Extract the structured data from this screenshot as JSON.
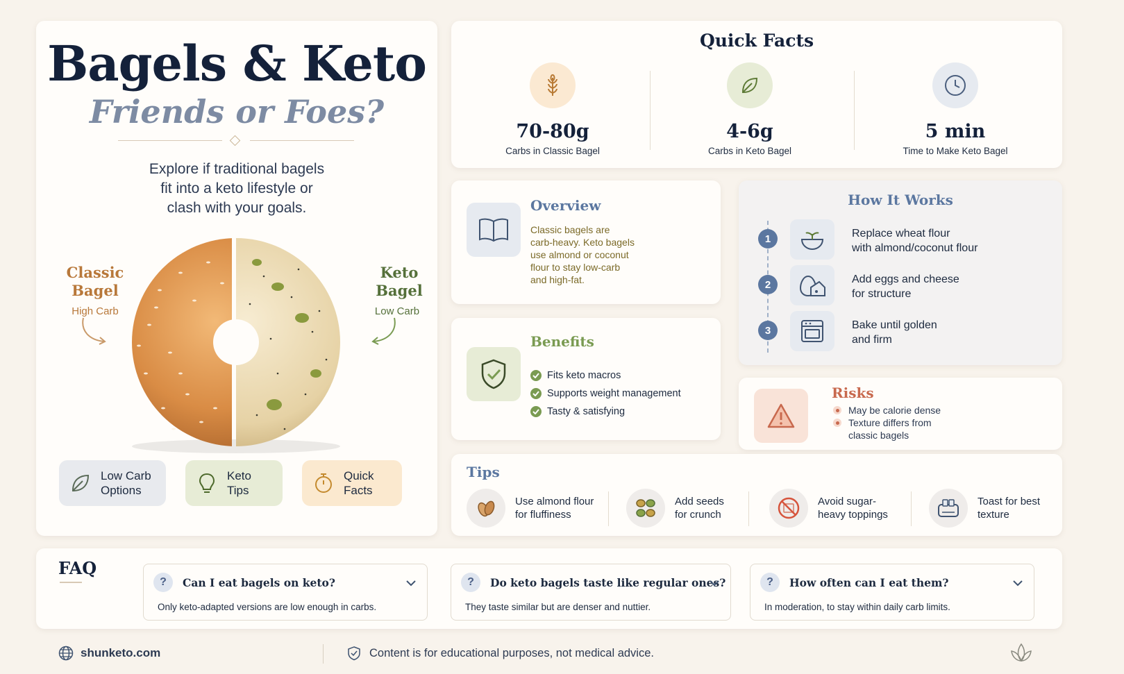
{
  "hero": {
    "title": "Bagels & Keto",
    "subtitle": "Friends or Foes?",
    "description": "Explore if traditional bagels\nfit into a keto lifestyle or\nclash with your goals.",
    "classic_label": "Classic\nBagel",
    "classic_sub": "High Carb",
    "keto_label": "Keto\nBagel",
    "keto_sub": "Low Carb",
    "pills": [
      {
        "label": "Low Carb\nOptions",
        "icon": "leaf-icon"
      },
      {
        "label": "Keto\nTips",
        "icon": "lightbulb-icon"
      },
      {
        "label": "Quick\nFacts",
        "icon": "stopwatch-icon"
      }
    ]
  },
  "quick_facts": {
    "title": "Quick Facts",
    "facts": [
      {
        "value": "70-80g",
        "label": "Carbs in Classic Bagel",
        "icon": "wheat-icon"
      },
      {
        "value": "4-6g",
        "label": "Carbs in Keto Bagel",
        "icon": "leaf-icon"
      },
      {
        "value": "5 min",
        "label": "Time to Make Keto Bagel",
        "icon": "clock-icon"
      }
    ]
  },
  "overview": {
    "title": "Overview",
    "text": "Classic bagels are\ncarb-heavy. Keto bagels\nuse almond or coconut\nflour to stay low-carb\nand high-fat.",
    "icon": "book-icon"
  },
  "how_it_works": {
    "title": "How It Works",
    "steps": [
      {
        "num": "1",
        "text": "Replace wheat flour\nwith almond/coconut flour",
        "icon": "bowl-icon"
      },
      {
        "num": "2",
        "text": "Add eggs and cheese\nfor structure",
        "icon": "egg-cheese-icon"
      },
      {
        "num": "3",
        "text": "Bake until golden\nand firm",
        "icon": "oven-icon"
      }
    ]
  },
  "benefits": {
    "title": "Benefits",
    "items": [
      "Fits keto macros",
      "Supports weight management",
      "Tasty & satisfying"
    ],
    "icon": "shield-check-icon"
  },
  "risks": {
    "title": "Risks",
    "items": [
      "May be calorie dense",
      "Texture differs from\nclassic bagels"
    ],
    "icon": "warning-icon"
  },
  "tips": {
    "title": "Tips",
    "items": [
      {
        "text": "Use almond flour\nfor fluffiness",
        "icon": "almond-icon"
      },
      {
        "text": "Add seeds\nfor crunch",
        "icon": "seeds-icon"
      },
      {
        "text": "Avoid sugar-\nheavy toppings",
        "icon": "no-sugar-icon"
      },
      {
        "text": "Toast for best\ntexture",
        "icon": "toaster-icon"
      }
    ]
  },
  "faq": {
    "title": "FAQ",
    "items": [
      {
        "q": "Can I eat bagels on keto?",
        "a": "Only keto-adapted versions are low enough in carbs."
      },
      {
        "q": "Do keto bagels taste like regular ones?",
        "a": "They taste similar but are denser and nuttier."
      },
      {
        "q": "How often can I eat them?",
        "a": "In moderation, to stay within daily carb limits."
      }
    ]
  },
  "footer": {
    "site": "shunketo.com",
    "disclaimer": "Content is for educational purposes, not medical advice."
  },
  "colors": {
    "navy": "#14213a",
    "classic_orange": "#b8783a",
    "keto_green": "#55703a",
    "step_blue": "#5b77a0",
    "risk_red": "#c8694e"
  }
}
